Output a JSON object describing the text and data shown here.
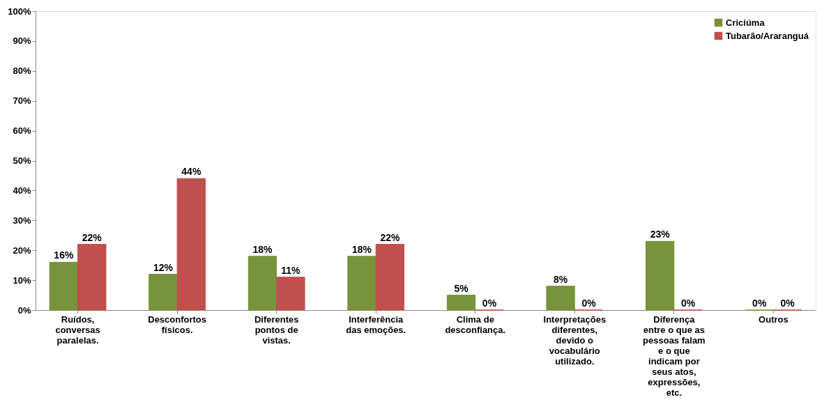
{
  "chart_data": {
    "type": "bar",
    "categories": [
      "Ruídos, conversas paralelas.",
      "Desconfortos físicos.",
      "Diferentes pontos de vistas.",
      "Interferência das emoções.",
      "Clima de desconfiança.",
      "Interpretações diferentes, devido o vocabulário utilizado.",
      "Diferença entre o que as pessoas falam e o que indicam por seus atos, expressões, etc.",
      "Outros"
    ],
    "series": [
      {
        "name": "Criciúma",
        "color": "#77933c",
        "values": [
          16,
          12,
          18,
          18,
          5,
          8,
          23,
          0
        ],
        "value_labels": [
          "16%",
          "12%",
          "18%",
          "18%",
          "5%",
          "8%",
          "23%",
          "0%"
        ]
      },
      {
        "name": "Tubarão/Araranguá",
        "color": "#c0504d",
        "values": [
          22,
          44,
          11,
          22,
          0,
          0,
          0,
          0
        ],
        "value_labels": [
          "22%",
          "44%",
          "11%",
          "22%",
          "0%",
          "0%",
          "0%",
          "0%"
        ]
      }
    ],
    "ylim": [
      0,
      100
    ],
    "yticks": [
      {
        "value": 0,
        "label": "0%"
      },
      {
        "value": 10,
        "label": "10%"
      },
      {
        "value": 20,
        "label": "20%"
      },
      {
        "value": 30,
        "label": "30%"
      },
      {
        "value": 40,
        "label": "40%"
      },
      {
        "value": 50,
        "label": "50%"
      },
      {
        "value": 60,
        "label": "60%"
      },
      {
        "value": 70,
        "label": "70%"
      },
      {
        "value": 80,
        "label": "80%"
      },
      {
        "value": 90,
        "label": "90%"
      },
      {
        "value": 100,
        "label": "100%"
      }
    ],
    "grid": false,
    "legend": "top right"
  }
}
